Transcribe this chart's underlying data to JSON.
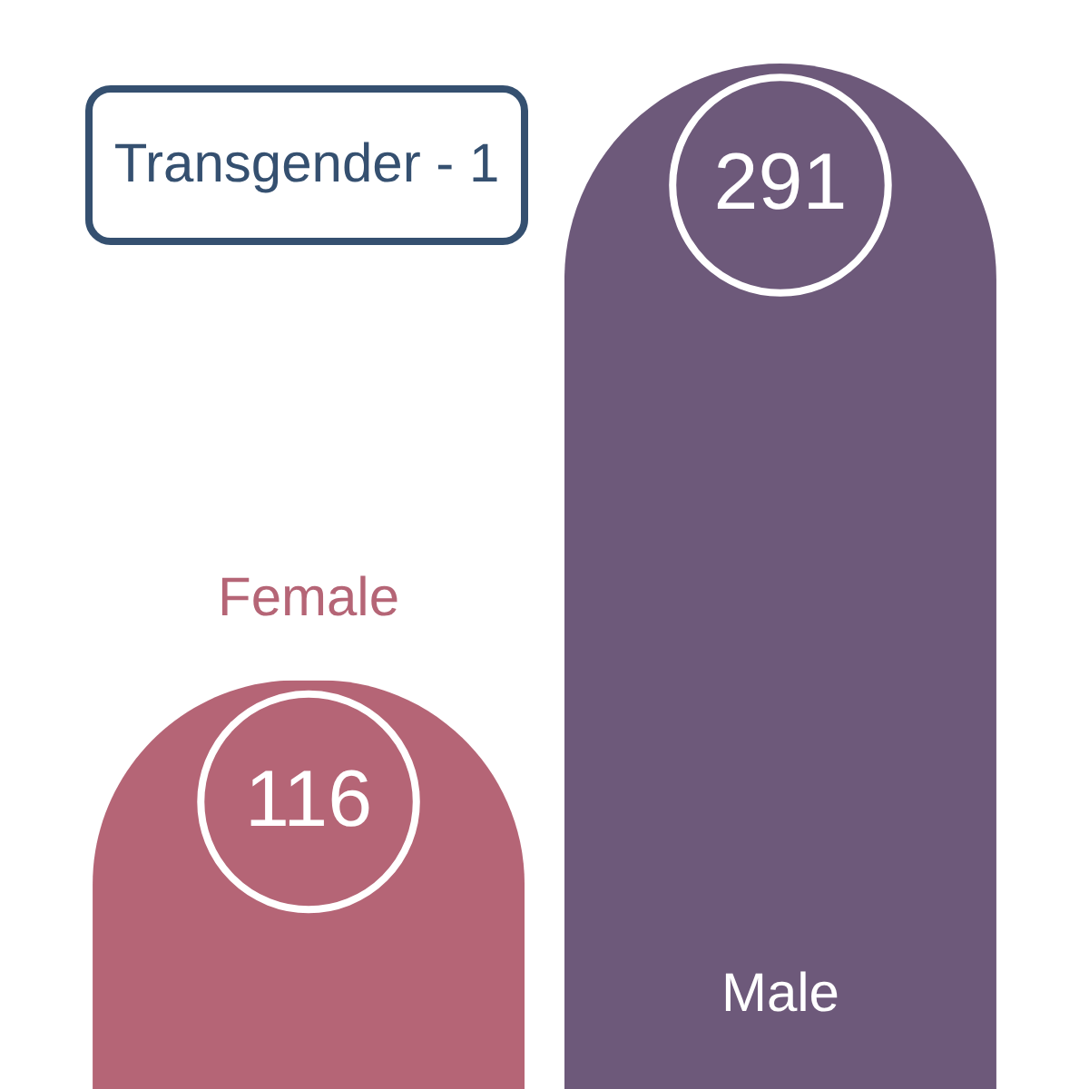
{
  "chart_data": {
    "type": "bar",
    "categories": [
      "Female",
      "Male"
    ],
    "values": [
      116,
      291
    ],
    "colors": [
      "#b56576",
      "#6d597a"
    ],
    "data_labels": true,
    "annotations": [
      "Transgender - 1"
    ]
  }
}
